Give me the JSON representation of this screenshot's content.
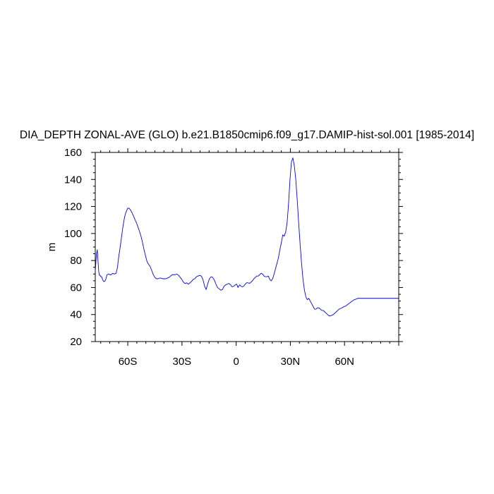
{
  "chart_data": {
    "type": "line",
    "title": "DIA_DEPTH ZONAL-AVE (GLO) b.e21.B1850cmip6.f09_g17.DAMIP-hist-sol.001 [1985-2014]",
    "xlabel": "",
    "ylabel": "m",
    "xlim": [
      -78,
      90
    ],
    "ylim": [
      20,
      160
    ],
    "x_ticks": [
      {
        "value": -60,
        "label": "60S"
      },
      {
        "value": -30,
        "label": "30S"
      },
      {
        "value": 0,
        "label": "0"
      },
      {
        "value": 30,
        "label": "30N"
      },
      {
        "value": 60,
        "label": "60N"
      }
    ],
    "y_ticks": [
      {
        "value": 20,
        "label": "20"
      },
      {
        "value": 40,
        "label": "40"
      },
      {
        "value": 60,
        "label": "60"
      },
      {
        "value": 80,
        "label": "80"
      },
      {
        "value": 100,
        "label": "100"
      },
      {
        "value": 120,
        "label": "120"
      },
      {
        "value": 140,
        "label": "140"
      },
      {
        "value": 160,
        "label": "160"
      }
    ],
    "grid": false,
    "series": [
      {
        "color": "#0000ff",
        "x": [
          -78,
          -77.4,
          -76.9,
          -76.5,
          -76.1,
          -75.7,
          -75.3,
          -74.9,
          -74.5,
          -74,
          -73.4,
          -72.8,
          -72.2,
          -71.5,
          -70.6,
          -70,
          -69.2,
          -68.4,
          -67.4,
          -66.5,
          -65.7,
          -65,
          -64.2,
          -63.5,
          -62.9,
          -62.3,
          -61.8,
          -61.2,
          -60.6,
          -60,
          -59.2,
          -58.4,
          -57.6,
          -56.8,
          -56,
          -55.1,
          -54.3,
          -53.5,
          -52.6,
          -51.8,
          -51,
          -50.1,
          -49.3,
          -48.4,
          -47.6,
          -46.7,
          -45.9,
          -45,
          -44.1,
          -43.3,
          -42.4,
          -41.6,
          -40.7,
          -39.8,
          -38.9,
          -38.1,
          -37.2,
          -36.3,
          -35.4,
          -34.5,
          -33.7,
          -32.8,
          -31.9,
          -31,
          -30.1,
          -29.2,
          -28.3,
          -27.4,
          -26.5,
          -25.6,
          -24.7,
          -23.8,
          -22.9,
          -22,
          -21.1,
          -20.2,
          -19.3,
          -18.4,
          -17.5,
          -16.6,
          -15.7,
          -14.8,
          -13.9,
          -13,
          -12.1,
          -11.2,
          -10.3,
          -9.4,
          -8.5,
          -7.6,
          -6.7,
          -5.8,
          -4.9,
          -4,
          -3.1,
          -2.2,
          -1.3,
          -0.4,
          0.2,
          0.6,
          1,
          1.4,
          2,
          2.6,
          3.4,
          4.2,
          5,
          5.8,
          6.6,
          7.4,
          8.2,
          9,
          9.8,
          10.6,
          11.4,
          12.2,
          13,
          13.8,
          14.6,
          15.4,
          16.2,
          17,
          17.8,
          18.6,
          19.4,
          20.2,
          21,
          21.8,
          22.6,
          23.4,
          24.2,
          25,
          25.8,
          26.6,
          27.4,
          28.2,
          29,
          29.8,
          30.6,
          31.4,
          32.2,
          33,
          33.8,
          34.6,
          35.4,
          36.2,
          37,
          37.8,
          38.6,
          39.4,
          40.2,
          41,
          41.8,
          42.6,
          43.4,
          44.2,
          45,
          45.8,
          46.6,
          47.4,
          48.2,
          49,
          49.8,
          50.6,
          51.4,
          52.2,
          53,
          53.8,
          54.6,
          55.4,
          56.2,
          57,
          57.8,
          58.6,
          59.2,
          59.8,
          60.3,
          60.8,
          61.3,
          61.8,
          62.3,
          62.8,
          63.3,
          63.8,
          64.3,
          64.8,
          65.3,
          65.8,
          66.3,
          66.8,
          67.3,
          67.8,
          68.3,
          68.8,
          69.3,
          69.8,
          70.3,
          70.8,
          71.3,
          71.8,
          72.3,
          72.8,
          73.3,
          73.8,
          74.3,
          74.8,
          75.3,
          75.8,
          76.3,
          76.8,
          77.3,
          77.8,
          78.3,
          78.8,
          79.3,
          79.8,
          80.3,
          80.8,
          81.3,
          81.8,
          82.3,
          82.8,
          83.3,
          83.8,
          84.3,
          84.8,
          85.3,
          85.8,
          86.3,
          86.8,
          87.3,
          87.8,
          88.3,
          88.8,
          89.3,
          89.8
        ],
        "y": [
          72,
          84,
          88,
          80,
          72,
          69,
          69,
          68,
          68,
          66,
          64.5,
          64.5,
          66,
          69.5,
          70,
          69.5,
          69.5,
          70.5,
          70,
          70.5,
          75,
          83,
          90,
          97,
          103,
          108,
          112,
          115,
          117,
          118.8,
          118.6,
          117.2,
          115.2,
          112.8,
          110.2,
          107.5,
          104.6,
          101.5,
          97.5,
          93,
          88,
          83,
          79,
          77,
          75.5,
          72.5,
          69.5,
          67.5,
          66.5,
          66.5,
          67,
          67,
          66.5,
          66.5,
          66.5,
          67,
          67.5,
          68.5,
          69.5,
          69.5,
          69.5,
          70,
          69,
          67.5,
          66,
          64,
          63,
          63.5,
          62.5,
          63.5,
          64.5,
          66,
          66.5,
          68,
          68.5,
          69,
          68.5,
          66,
          61,
          58.5,
          63,
          66.5,
          68,
          67.5,
          65.5,
          62.5,
          60,
          59,
          58,
          58.5,
          61,
          62,
          62.5,
          63,
          62,
          60.5,
          61,
          62,
          62.5,
          61.5,
          60,
          61,
          62,
          61,
          60.5,
          61,
          62.5,
          63.5,
          63.5,
          63,
          64,
          65,
          66.5,
          67.5,
          68.5,
          68.5,
          69.5,
          70.5,
          70,
          68.5,
          68,
          68,
          68.5,
          66,
          65,
          66.5,
          70,
          74,
          78,
          82,
          88,
          93,
          99,
          98,
          101,
          108,
          122,
          140,
          153,
          156,
          150,
          140,
          125,
          108,
          92,
          78,
          66,
          58,
          53,
          51,
          52,
          50,
          48,
          46,
          44,
          44,
          45,
          45,
          44,
          43,
          43,
          42,
          41,
          40,
          39,
          39,
          39.5,
          40,
          41,
          42,
          43,
          44,
          44.5,
          45,
          45.5,
          46,
          46,
          46.5,
          47,
          47.5,
          48,
          48.5,
          49,
          49.5,
          50,
          50.5,
          51,
          51,
          51.5,
          51.5,
          52,
          52,
          52,
          52,
          52,
          52,
          52,
          52,
          52,
          52,
          52,
          52,
          52,
          52,
          52,
          52,
          52,
          52,
          52,
          52,
          52,
          52,
          52,
          52,
          52,
          52,
          52,
          52,
          52,
          52,
          52,
          52,
          52,
          52,
          52,
          52,
          52,
          52,
          52,
          52,
          52,
          52,
          52,
          52,
          52,
          52
        ]
      }
    ]
  }
}
